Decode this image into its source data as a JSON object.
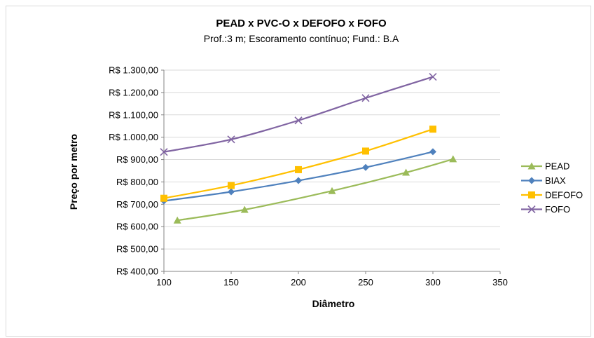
{
  "chart_data": {
    "type": "line",
    "title": "PEAD x PVC-O  x DEFOFO x FOFO",
    "subtitle": "Prof.:3 m; Escoramento contínuo; Fund.: B.A",
    "xlabel": "Diâmetro",
    "ylabel": "Preço por metro",
    "xlim": [
      100,
      350
    ],
    "ylim": [
      400,
      1300
    ],
    "x_ticks": [
      100,
      150,
      200,
      250,
      300,
      350
    ],
    "x_tick_labels": [
      "100",
      "150",
      "200",
      "250",
      "300",
      "350"
    ],
    "y_ticks": [
      400,
      500,
      600,
      700,
      800,
      900,
      1000,
      1100,
      1200,
      1300
    ],
    "y_tick_labels": [
      "R$ 400,00",
      "R$ 500,00",
      "R$ 600,00",
      "R$ 700,00",
      "R$ 800,00",
      "R$ 900,00",
      "R$ 1.000,00",
      "R$ 1.100,00",
      "R$ 1.200,00",
      "R$ 1.300,00"
    ],
    "grid": "horizontal",
    "legend_position": "right",
    "series": [
      {
        "name": "PEAD",
        "color": "#9bbb59",
        "marker": "triangle",
        "x": [
          110,
          160,
          225,
          280,
          315
        ],
        "y": [
          628,
          676,
          760,
          842,
          902
        ]
      },
      {
        "name": "BIAX",
        "color": "#4f81bd",
        "marker": "diamond",
        "x": [
          100,
          150,
          200,
          250,
          300
        ],
        "y": [
          715,
          756,
          806,
          865,
          935
        ]
      },
      {
        "name": "DEFOFO",
        "color": "#ffc000",
        "marker": "square",
        "x": [
          100,
          150,
          200,
          250,
          300
        ],
        "y": [
          727,
          784,
          855,
          938,
          1036
        ]
      },
      {
        "name": "FOFO",
        "color": "#8064a2",
        "marker": "x",
        "x": [
          100,
          150,
          200,
          250,
          300
        ],
        "y": [
          934,
          990,
          1075,
          1175,
          1270
        ]
      }
    ]
  }
}
